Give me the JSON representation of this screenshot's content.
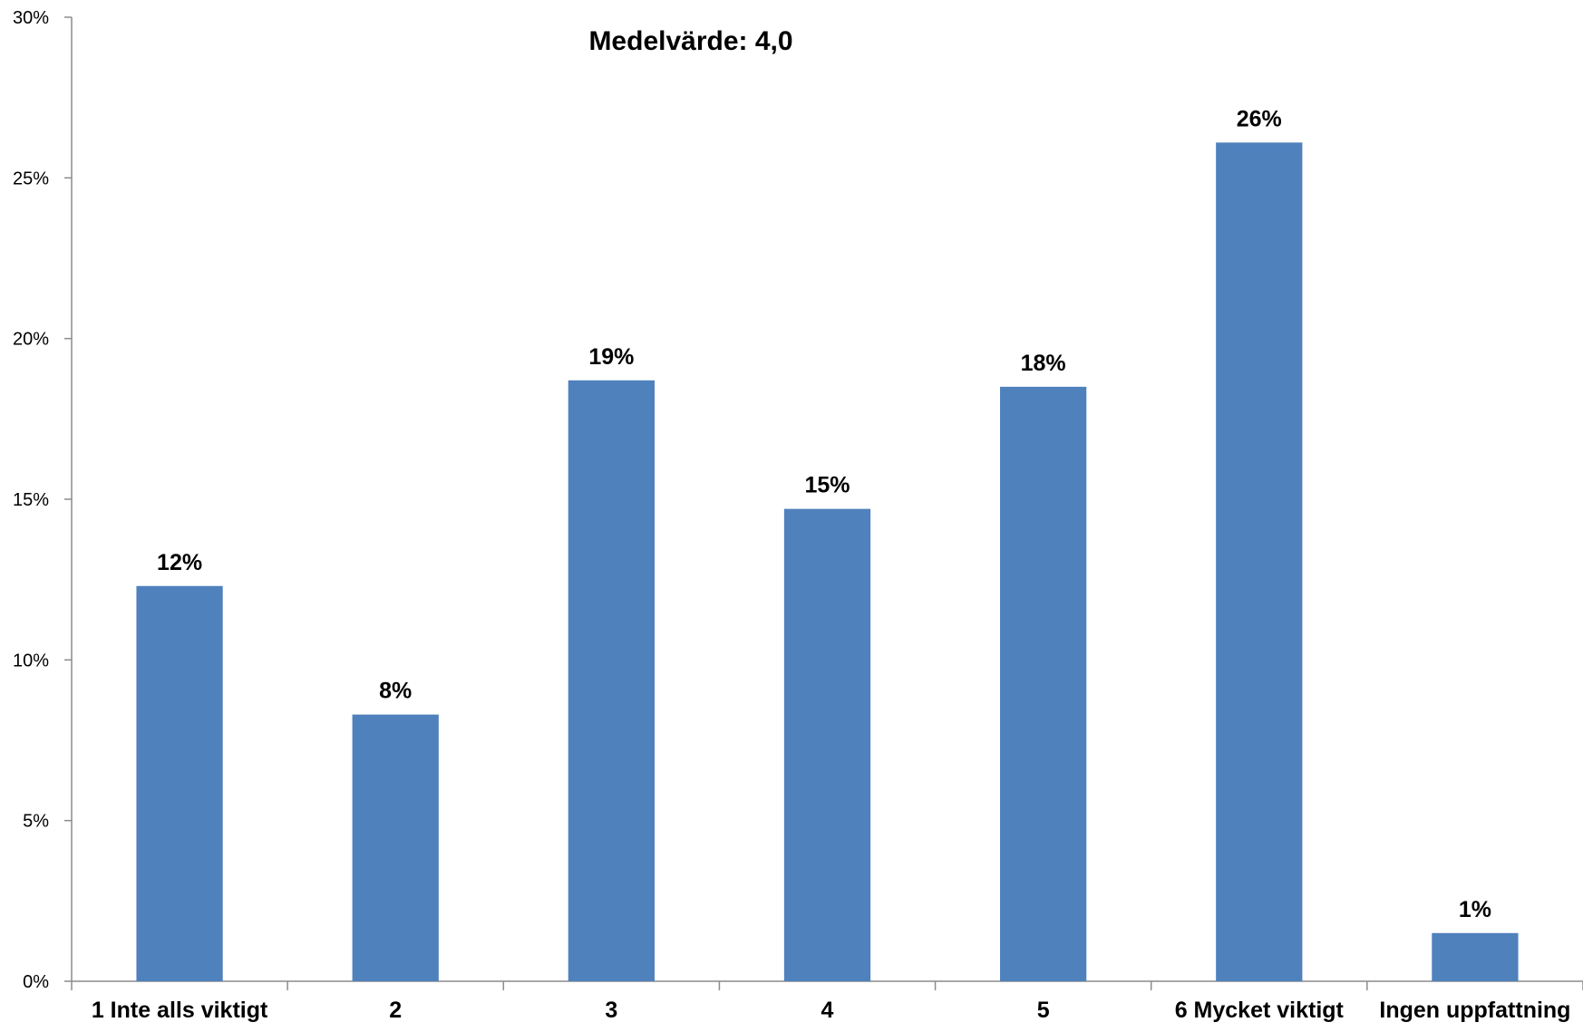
{
  "chart_data": {
    "type": "bar",
    "title": "Medelvärde: 4,0",
    "xlabel": "",
    "ylabel": "",
    "categories": [
      "1 Inte alls viktigt",
      "2",
      "3",
      "4",
      "5",
      "6 Mycket viktigt",
      "Ingen uppfattning"
    ],
    "values": [
      12.3,
      8.3,
      18.7,
      14.7,
      18.5,
      26.1,
      1.5
    ],
    "data_labels": [
      "12%",
      "8%",
      "19%",
      "15%",
      "18%",
      "26%",
      "1%"
    ],
    "ylim": [
      0,
      30
    ],
    "yticks": [
      0,
      5,
      10,
      15,
      20,
      25,
      30
    ],
    "ytick_labels": [
      "0%",
      "5%",
      "10%",
      "15%",
      "20%",
      "25%",
      "30%"
    ],
    "grid": false,
    "legend": "none",
    "bar_color": "#4f81bd"
  }
}
